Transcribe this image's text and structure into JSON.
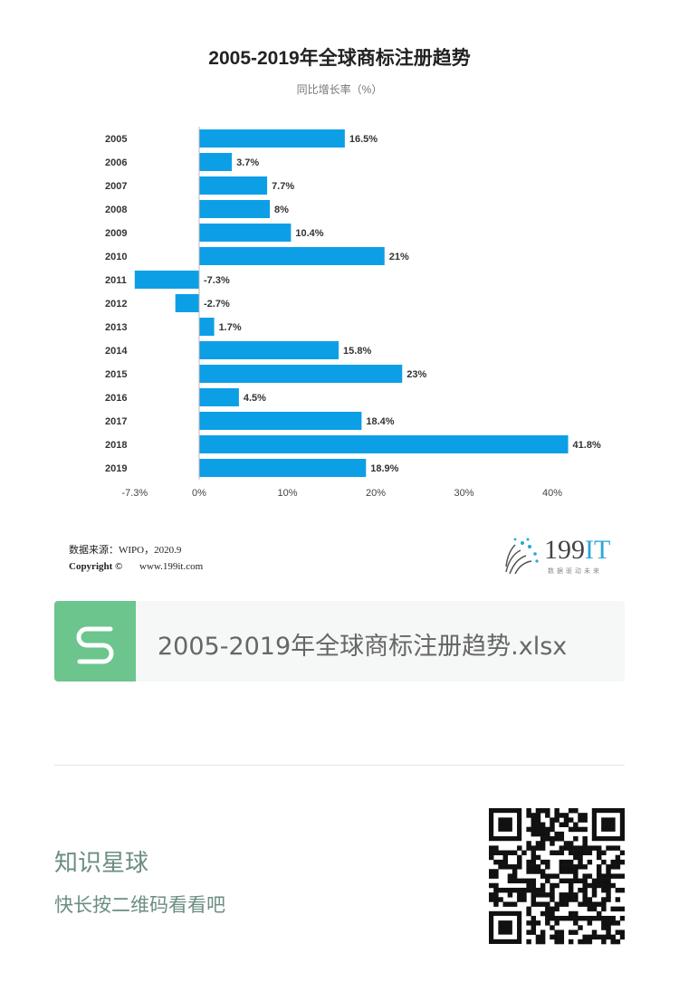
{
  "chart_data": {
    "type": "bar",
    "orientation": "horizontal",
    "title": "2005-2019年全球商标注册趋势",
    "subtitle": "同比增长率（%）",
    "categories": [
      "2005",
      "2006",
      "2007",
      "2008",
      "2009",
      "2010",
      "2011",
      "2012",
      "2013",
      "2014",
      "2015",
      "2016",
      "2017",
      "2018",
      "2019"
    ],
    "values": [
      16.5,
      3.7,
      7.7,
      8,
      10.4,
      21,
      -7.3,
      -2.7,
      1.7,
      15.8,
      23,
      4.5,
      18.4,
      41.8,
      18.9
    ],
    "data_labels": [
      "16.5%",
      "3.7%",
      "7.7%",
      "8%",
      "10.4%",
      "21%",
      "-7.3%",
      "-2.7%",
      "1.7%",
      "15.8%",
      "23%",
      "4.5%",
      "18.4%",
      "41.8%",
      "18.9%"
    ],
    "xticks": [
      -7.3,
      0,
      10,
      20,
      30,
      40
    ],
    "xtick_labels": [
      "-7.3%",
      "0%",
      "10%",
      "20%",
      "30%",
      "40%"
    ],
    "xlim": [
      -7.3,
      40
    ],
    "bar_color": "#0d9fe6",
    "grid": false,
    "legend": "none"
  },
  "footer": {
    "source": "数据来源：WIPO，2020.9",
    "copyright": "Copyright ©",
    "website": "www.199it.com",
    "logo_text": "199IT",
    "logo_tagline": "数据驱动未来"
  },
  "file_card": {
    "name": "2005-2019年全球商标注册趋势.xlsx",
    "icon_color": "#6cc58c"
  },
  "promo": {
    "title": "知识星球",
    "hint": "快长按二维码看看吧"
  }
}
